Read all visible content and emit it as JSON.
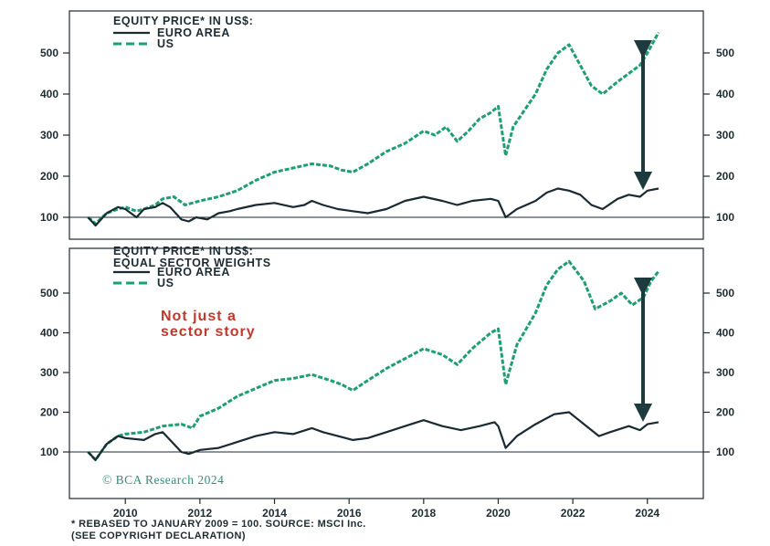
{
  "colors": {
    "euro": "#1a2a33",
    "us": "#1e9e72",
    "annotation": "#c0392b",
    "copyright": "#2f8f79",
    "arrow": "#1d3b3e",
    "frame": "#1a2a33"
  },
  "chart_data": [
    {
      "type": "line",
      "title": "EQUITY PRICE* IN US$:",
      "xlim": [
        2008.5,
        2025.5
      ],
      "ylim": [
        50,
        560
      ],
      "y_ticks": [
        100,
        200,
        300,
        400,
        500
      ],
      "x_ticks": [
        "2010",
        "2012",
        "2014",
        "2016",
        "2018",
        "2020",
        "2022",
        "2024"
      ],
      "reference_line": 100,
      "grid": false,
      "legend": "top-left",
      "series": [
        {
          "name": "EURO AREA",
          "style": "solid",
          "x": [
            2009.0,
            2009.2,
            2009.5,
            2009.8,
            2010.0,
            2010.3,
            2010.5,
            2010.8,
            2011.0,
            2011.2,
            2011.5,
            2011.7,
            2011.9,
            2012.2,
            2012.5,
            2012.8,
            2013.0,
            2013.5,
            2014.0,
            2014.5,
            2014.8,
            2015.0,
            2015.3,
            2015.7,
            2016.1,
            2016.5,
            2017.0,
            2017.5,
            2018.0,
            2018.5,
            2018.9,
            2019.3,
            2019.8,
            2020.0,
            2020.2,
            2020.5,
            2021.0,
            2021.3,
            2021.6,
            2021.9,
            2022.2,
            2022.5,
            2022.8,
            2023.2,
            2023.5,
            2023.8,
            2024.0,
            2024.3
          ],
          "y": [
            100,
            80,
            110,
            125,
            120,
            100,
            120,
            125,
            135,
            125,
            95,
            90,
            100,
            95,
            110,
            115,
            120,
            130,
            135,
            125,
            130,
            140,
            130,
            120,
            115,
            110,
            120,
            140,
            150,
            140,
            130,
            140,
            145,
            140,
            100,
            120,
            140,
            160,
            170,
            165,
            155,
            130,
            120,
            145,
            155,
            150,
            165,
            170
          ]
        },
        {
          "name": "US",
          "style": "dashed",
          "x": [
            2009.0,
            2009.2,
            2009.5,
            2009.8,
            2010.0,
            2010.3,
            2010.5,
            2010.8,
            2011.0,
            2011.3,
            2011.6,
            2011.8,
            2012.0,
            2012.5,
            2013.0,
            2013.5,
            2014.0,
            2014.5,
            2015.0,
            2015.5,
            2015.8,
            2016.1,
            2016.5,
            2017.0,
            2017.5,
            2018.0,
            2018.3,
            2018.6,
            2018.9,
            2019.2,
            2019.5,
            2019.8,
            2020.0,
            2020.2,
            2020.4,
            2020.7,
            2021.0,
            2021.3,
            2021.6,
            2021.9,
            2022.2,
            2022.5,
            2022.8,
            2023.2,
            2023.5,
            2023.8,
            2024.0,
            2024.3
          ],
          "y": [
            100,
            85,
            110,
            120,
            125,
            115,
            120,
            130,
            145,
            150,
            130,
            135,
            140,
            150,
            165,
            190,
            210,
            220,
            230,
            225,
            215,
            210,
            230,
            260,
            280,
            310,
            300,
            320,
            285,
            310,
            340,
            355,
            370,
            250,
            320,
            360,
            400,
            460,
            500,
            520,
            470,
            420,
            400,
            430,
            450,
            470,
            500,
            550
          ]
        }
      ]
    },
    {
      "type": "line",
      "title": "EQUITY PRICE* IN US$:",
      "subtitle": "EQUAL SECTOR WEIGHTS",
      "annotation": [
        "Not just a",
        "sector story"
      ],
      "xlim": [
        2008.5,
        2025.5
      ],
      "ylim": [
        50,
        560
      ],
      "y_ticks": [
        100,
        200,
        300,
        400,
        500
      ],
      "x_ticks": [
        "2010",
        "2012",
        "2014",
        "2016",
        "2018",
        "2020",
        "2022",
        "2024"
      ],
      "reference_line": 100,
      "grid": false,
      "legend": "top-left",
      "series": [
        {
          "name": "EURO AREA",
          "style": "solid",
          "x": [
            2009.0,
            2009.2,
            2009.5,
            2009.8,
            2010.0,
            2010.5,
            2010.8,
            2011.0,
            2011.2,
            2011.5,
            2011.7,
            2012.0,
            2012.5,
            2013.0,
            2013.5,
            2014.0,
            2014.5,
            2015.0,
            2015.3,
            2015.7,
            2016.1,
            2016.5,
            2017.0,
            2017.5,
            2018.0,
            2018.5,
            2019.0,
            2019.5,
            2019.9,
            2020.0,
            2020.2,
            2020.5,
            2021.0,
            2021.5,
            2021.9,
            2022.3,
            2022.7,
            2023.0,
            2023.5,
            2023.8,
            2024.0,
            2024.3
          ],
          "y": [
            100,
            80,
            120,
            140,
            135,
            130,
            145,
            150,
            130,
            100,
            95,
            105,
            110,
            125,
            140,
            150,
            145,
            160,
            150,
            140,
            130,
            135,
            150,
            165,
            180,
            165,
            155,
            165,
            175,
            165,
            110,
            140,
            170,
            195,
            200,
            170,
            140,
            150,
            165,
            155,
            170,
            175
          ]
        },
        {
          "name": "US",
          "style": "dashed",
          "x": [
            2009.0,
            2009.2,
            2009.5,
            2009.8,
            2010.0,
            2010.5,
            2011.0,
            2011.5,
            2011.8,
            2012.0,
            2012.5,
            2013.0,
            2013.5,
            2014.0,
            2014.5,
            2015.0,
            2015.5,
            2015.8,
            2016.1,
            2016.5,
            2017.0,
            2017.5,
            2018.0,
            2018.5,
            2018.9,
            2019.3,
            2019.8,
            2020.0,
            2020.2,
            2020.5,
            2021.0,
            2021.3,
            2021.6,
            2021.9,
            2022.3,
            2022.6,
            2023.0,
            2023.3,
            2023.6,
            2023.9,
            2024.1,
            2024.3
          ],
          "y": [
            100,
            80,
            120,
            140,
            145,
            150,
            165,
            170,
            160,
            190,
            210,
            240,
            260,
            280,
            285,
            295,
            280,
            270,
            255,
            280,
            310,
            335,
            360,
            345,
            320,
            360,
            400,
            410,
            270,
            370,
            450,
            520,
            560,
            580,
            530,
            460,
            480,
            500,
            470,
            490,
            530,
            555
          ]
        }
      ]
    }
  ],
  "footnote": {
    "line1": "* REBASED TO JANUARY 2009 = 100. SOURCE: MSCI Inc.",
    "line2": "(SEE COPYRIGHT DECLARATION)"
  },
  "copyright": "© BCA Research 2024"
}
